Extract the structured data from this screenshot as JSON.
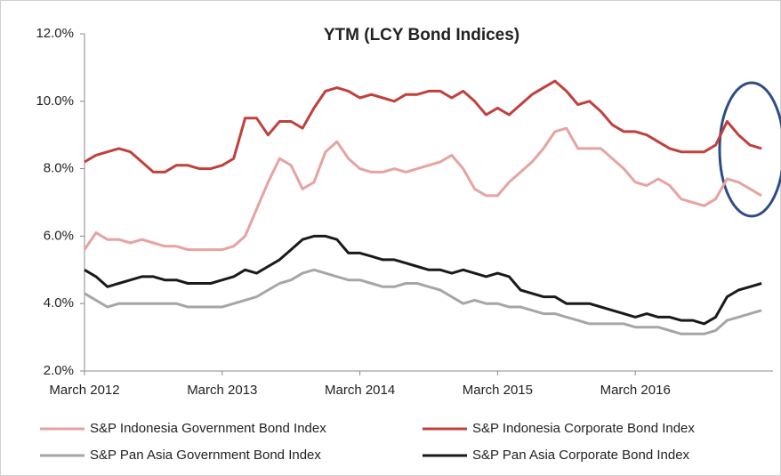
{
  "chart_data": {
    "type": "line",
    "title": "YTM (LCY Bond Indices)",
    "categories": [
      "March 2012",
      null,
      null,
      null,
      null,
      null,
      null,
      null,
      null,
      null,
      null,
      null,
      "March 2013",
      null,
      null,
      null,
      null,
      null,
      null,
      null,
      null,
      null,
      null,
      null,
      "March 2014",
      null,
      null,
      null,
      null,
      null,
      null,
      null,
      null,
      null,
      null,
      null,
      "March 2015",
      null,
      null,
      null,
      null,
      null,
      null,
      null,
      null,
      null,
      null,
      null,
      "March 2016",
      null,
      null,
      null,
      null,
      null,
      null,
      null,
      null,
      null,
      null,
      null
    ],
    "series": [
      {
        "name": "S&P Indonesia Government Bond Index",
        "color": "#e6a3a1",
        "values": [
          5.6,
          6.1,
          5.9,
          5.9,
          5.8,
          5.9,
          5.8,
          5.7,
          5.7,
          5.6,
          5.6,
          5.6,
          5.6,
          5.7,
          6.0,
          6.8,
          7.6,
          8.3,
          8.1,
          7.4,
          7.6,
          8.5,
          8.8,
          8.3,
          8.0,
          7.9,
          7.9,
          8.0,
          7.9,
          8.0,
          8.1,
          8.2,
          8.4,
          8.0,
          7.4,
          7.2,
          7.2,
          7.6,
          7.9,
          8.2,
          8.6,
          9.1,
          9.2,
          8.6,
          8.6,
          8.6,
          8.3,
          8.0,
          7.6,
          7.5,
          7.7,
          7.5,
          7.1,
          7.0,
          6.9,
          7.1,
          7.7,
          7.6,
          7.4,
          7.2
        ]
      },
      {
        "name": "S&P Indonesia Corporate Bond Index",
        "color": "#c0403d",
        "values": [
          8.2,
          8.4,
          8.5,
          8.6,
          8.5,
          8.2,
          7.9,
          7.9,
          8.1,
          8.1,
          8.0,
          8.0,
          8.1,
          8.3,
          9.5,
          9.5,
          9.0,
          9.4,
          9.4,
          9.2,
          9.8,
          10.3,
          10.4,
          10.3,
          10.1,
          10.2,
          10.1,
          10.0,
          10.2,
          10.2,
          10.3,
          10.3,
          10.1,
          10.3,
          10.0,
          9.6,
          9.8,
          9.6,
          9.9,
          10.2,
          10.4,
          10.6,
          10.3,
          9.9,
          10.0,
          9.7,
          9.3,
          9.1,
          9.1,
          9.0,
          8.8,
          8.6,
          8.5,
          8.5,
          8.5,
          8.7,
          9.4,
          9.0,
          8.7,
          8.6
        ]
      },
      {
        "name": "S&P Pan Asia Government Bond Index",
        "color": "#a6a6a6",
        "values": [
          4.3,
          4.1,
          3.9,
          4.0,
          4.0,
          4.0,
          4.0,
          4.0,
          4.0,
          3.9,
          3.9,
          3.9,
          3.9,
          4.0,
          4.1,
          4.2,
          4.4,
          4.6,
          4.7,
          4.9,
          5.0,
          4.9,
          4.8,
          4.7,
          4.7,
          4.6,
          4.5,
          4.5,
          4.6,
          4.6,
          4.5,
          4.4,
          4.2,
          4.0,
          4.1,
          4.0,
          4.0,
          3.9,
          3.9,
          3.8,
          3.7,
          3.7,
          3.6,
          3.5,
          3.4,
          3.4,
          3.4,
          3.4,
          3.3,
          3.3,
          3.3,
          3.2,
          3.1,
          3.1,
          3.1,
          3.2,
          3.5,
          3.6,
          3.7,
          3.8
        ]
      },
      {
        "name": "S&P Pan Asia Corporate Bond Index",
        "color": "#1a1a1a",
        "values": [
          5.0,
          4.8,
          4.5,
          4.6,
          4.7,
          4.8,
          4.8,
          4.7,
          4.7,
          4.6,
          4.6,
          4.6,
          4.7,
          4.8,
          5.0,
          4.9,
          5.1,
          5.3,
          5.6,
          5.9,
          6.0,
          6.0,
          5.9,
          5.5,
          5.5,
          5.4,
          5.3,
          5.3,
          5.2,
          5.1,
          5.0,
          5.0,
          4.9,
          5.0,
          4.9,
          4.8,
          4.9,
          4.8,
          4.4,
          4.3,
          4.2,
          4.2,
          4.0,
          4.0,
          4.0,
          3.9,
          3.8,
          3.7,
          3.6,
          3.7,
          3.6,
          3.6,
          3.5,
          3.5,
          3.4,
          3.6,
          4.2,
          4.4,
          4.5,
          4.6
        ]
      }
    ],
    "ylim": [
      2,
      12
    ],
    "yticks": [
      {
        "value": 2,
        "label": "2.0%"
      },
      {
        "value": 4,
        "label": "4.0%"
      },
      {
        "value": 6,
        "label": "6.0%"
      },
      {
        "value": 8,
        "label": "8.0%"
      },
      {
        "value": 10,
        "label": "10.0%"
      },
      {
        "value": 12,
        "label": "12.0%"
      }
    ],
    "grid": false
  }
}
